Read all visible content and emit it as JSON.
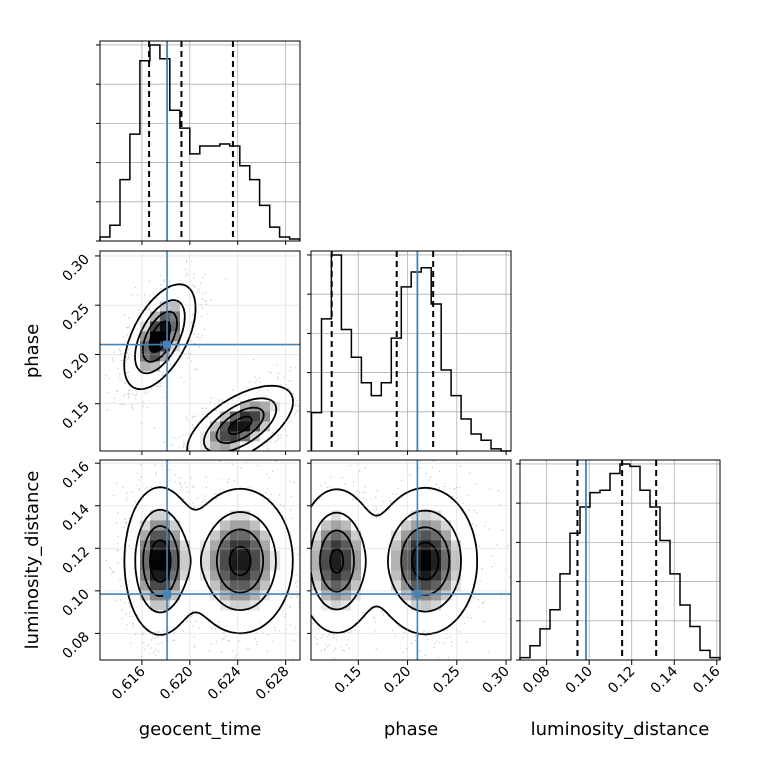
{
  "chart_data": {
    "type": "corner",
    "parameters": [
      "geocent_time",
      "phase",
      "luminosity_distance"
    ],
    "axis_labels": {
      "geocent_time": "geocent_time",
      "phase": "phase",
      "luminosity_distance": "luminosity_distance"
    },
    "ranges": {
      "geocent_time": [
        0.6125,
        0.6292
      ],
      "phase": [
        0.102,
        0.305
      ],
      "luminosity_distance": [
        0.0675,
        0.1615
      ]
    },
    "ticks": {
      "geocent_time": [
        0.616,
        0.62,
        0.624,
        0.628
      ],
      "phase": [
        0.15,
        0.2,
        0.25,
        0.3
      ],
      "luminosity_distance": [
        0.08,
        0.1,
        0.12,
        0.14,
        0.16
      ]
    },
    "tick_labels": {
      "geocent_time": [
        "0.616",
        "0.620",
        "0.624",
        "0.628"
      ],
      "phase": [
        "0.15",
        "0.20",
        "0.25",
        "0.30"
      ],
      "luminosity_distance": [
        "0.08",
        "0.10",
        "0.12",
        "0.14",
        "0.16"
      ],
      "phase_y": [
        "0.15",
        "0.20",
        "0.25",
        "0.30"
      ],
      "luminosity_distance_y": [
        "0.08",
        "0.10",
        "0.12",
        "0.14",
        "0.16"
      ]
    },
    "injection": {
      "geocent_time": 0.6181,
      "phase": 0.21,
      "luminosity_distance": 0.0985
    },
    "quantiles": {
      "geocent_time": [
        0.6166,
        0.6193,
        0.6236
      ],
      "phase": [
        0.123,
        0.189,
        0.226
      ],
      "luminosity_distance": [
        0.0945,
        0.1155,
        0.1315
      ]
    },
    "histograms": {
      "geocent_time": {
        "edges": [
          0.6125,
          0.61333,
          0.61417,
          0.615,
          0.61583,
          0.61667,
          0.6175,
          0.61833,
          0.61917,
          0.62,
          0.62083,
          0.62167,
          0.6225,
          0.62333,
          0.62417,
          0.625,
          0.62583,
          0.62667,
          0.6275,
          0.62833,
          0.62917
        ],
        "counts": [
          2,
          8,
          31,
          54,
          91,
          99,
          92,
          66,
          57,
          44,
          48,
          48,
          49,
          48,
          38,
          31,
          18,
          7,
          2,
          1
        ]
      },
      "phase": {
        "edges": [
          0.1025,
          0.11263,
          0.12275,
          0.13288,
          0.143,
          0.15313,
          0.16325,
          0.17338,
          0.1835,
          0.19363,
          0.20375,
          0.21388,
          0.224,
          0.23413,
          0.24425,
          0.25438,
          0.2645,
          0.27463,
          0.28475,
          0.29488,
          0.305
        ],
        "counts": [
          18,
          62,
          92,
          57,
          44,
          32,
          26,
          32,
          53,
          77,
          84,
          86,
          69,
          38,
          26,
          15,
          8,
          5,
          1,
          0
        ]
      },
      "luminosity_distance": {
        "edges": [
          0.0675,
          0.0722,
          0.0769,
          0.0816,
          0.0863,
          0.091,
          0.0957,
          0.1004,
          0.1051,
          0.1098,
          0.1145,
          0.1192,
          0.1239,
          0.1286,
          0.1333,
          0.138,
          0.1427,
          0.1474,
          0.1521,
          0.1568,
          0.1615
        ],
        "counts": [
          1,
          6,
          13,
          21,
          36,
          53,
          64,
          70,
          71,
          78,
          82,
          81,
          71,
          64,
          50,
          36,
          23,
          14,
          4,
          1
        ]
      }
    },
    "density_components": [
      {
        "geocent_time": 0.6175,
        "phase": 0.218,
        "luminosity_distance": 0.114,
        "weight": 0.52
      },
      {
        "geocent_time": 0.6242,
        "phase": 0.128,
        "luminosity_distance": 0.114,
        "weight": 0.48
      }
    ],
    "grid": true,
    "colors": {
      "injection": "#4682b4",
      "contour": "#000000",
      "histogram": "#000000",
      "grid": "#b0b0b0"
    }
  }
}
